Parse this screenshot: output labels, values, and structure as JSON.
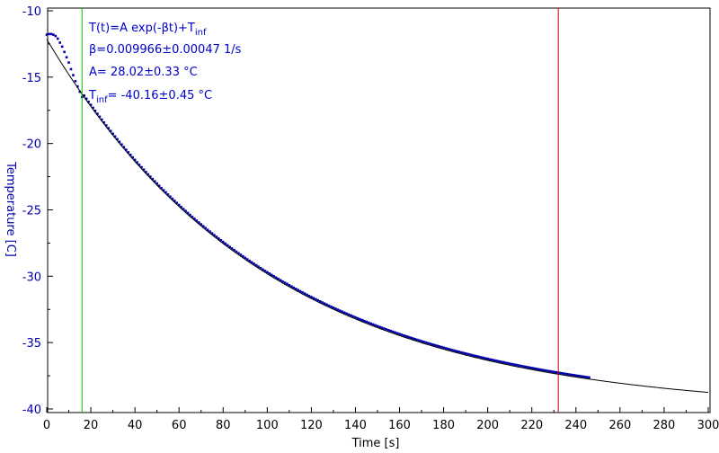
{
  "chart_data": {
    "type": "scatter",
    "xlabel": "Time [s]",
    "ylabel": "Temperature [C]",
    "xlim": [
      0,
      300
    ],
    "ylim": [
      -40,
      -10
    ],
    "xticks": [
      "0",
      "20",
      "40",
      "60",
      "80",
      "100",
      "120",
      "140",
      "160",
      "180",
      "200",
      "220",
      "240",
      "260",
      "280",
      "300"
    ],
    "yticks": [
      "-10",
      "-15",
      "-20",
      "-25",
      "-30",
      "-35",
      "-40"
    ],
    "grid": false,
    "fit": {
      "model": "T(t)=A exp(-βt)+T",
      "model_sub": "inf",
      "beta_text": "β=0.009966±0.00047 1/s",
      "a_text": "A= 28.02±0.33 °C",
      "tinf_prefix": "T",
      "tinf_sub": "inf",
      "tinf_text": "= -40.16±0.45 °C",
      "A": 28.02,
      "beta": 0.009966,
      "T_inf": -40.16
    },
    "cursor_left_x": 16,
    "cursor_right_x": 232,
    "data_range": [
      0,
      246
    ],
    "early_points": [
      [
        0,
        -11.8
      ],
      [
        1,
        -11.75
      ],
      [
        2,
        -11.75
      ],
      [
        3,
        -11.8
      ],
      [
        4,
        -11.9
      ],
      [
        5,
        -12.1
      ],
      [
        6,
        -12.4
      ],
      [
        7,
        -12.7
      ],
      [
        8,
        -13.1
      ],
      [
        9,
        -13.5
      ],
      [
        10,
        -13.9
      ],
      [
        11,
        -14.4
      ],
      [
        12,
        -14.85
      ],
      [
        13,
        -15.3
      ],
      [
        14,
        -15.7
      ],
      [
        15,
        -16.1
      ],
      [
        16,
        -16.5
      ]
    ],
    "colors": {
      "data": "#0000aa",
      "fit": "#000000",
      "cursor_left": "#00bb00",
      "cursor_right": "#cc0000",
      "ylabel": "#0000aa",
      "fit_text": "#0000cc"
    }
  }
}
